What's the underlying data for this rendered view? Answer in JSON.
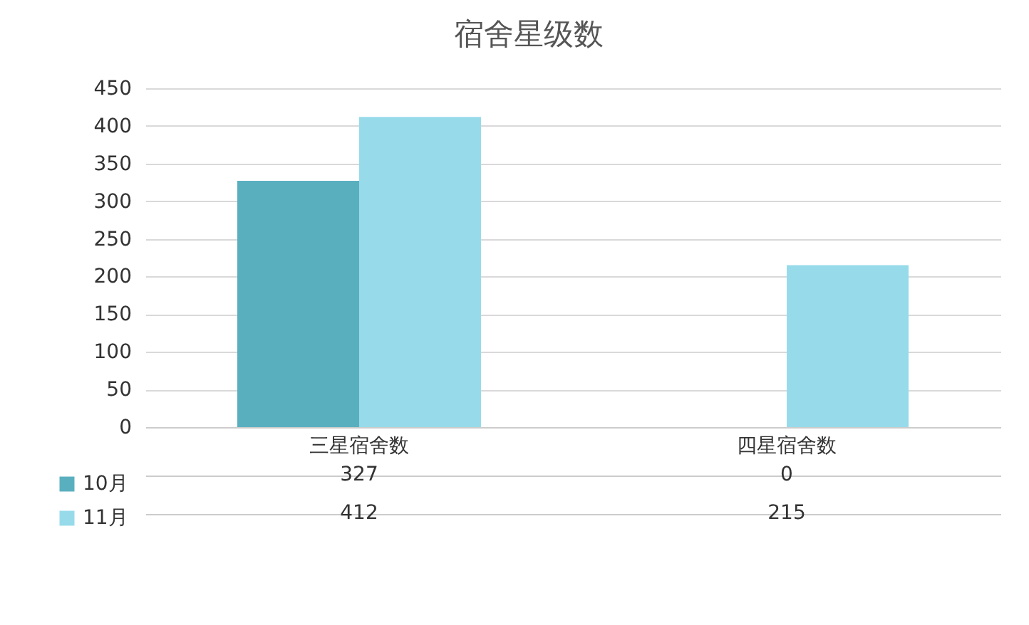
{
  "chart_data": {
    "type": "bar",
    "title": "宿舍星级数",
    "categories": [
      "三星宿舍数",
      "四星宿舍数"
    ],
    "series": [
      {
        "name": "10月",
        "color": "#5aafbf",
        "values": [
          327,
          0
        ]
      },
      {
        "name": "11月",
        "color": "#97dbeb",
        "values": [
          412,
          215
        ]
      }
    ],
    "ylim": [
      0,
      450
    ],
    "yticks": [
      0,
      50,
      100,
      150,
      200,
      250,
      300,
      350,
      400,
      450
    ],
    "grid": "y",
    "legend": "bottom left",
    "data_labels": true
  }
}
